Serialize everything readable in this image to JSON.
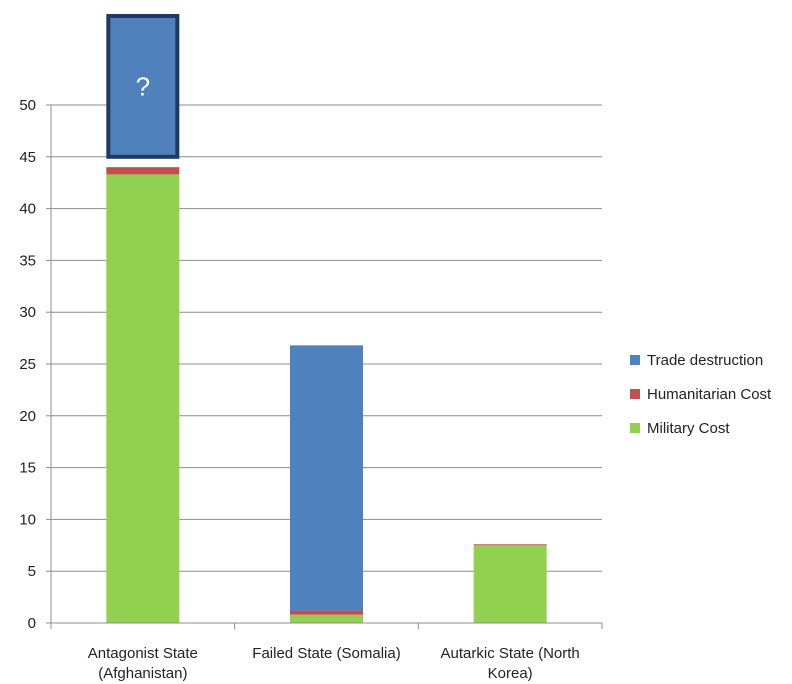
{
  "chart_data": {
    "type": "bar",
    "stacked": true,
    "categories": [
      [
        "Antagonist State",
        "(Afghanistan)"
      ],
      [
        "Failed State (Somalia)"
      ],
      [
        "Autarkic State (North",
        "Korea)"
      ]
    ],
    "series": [
      {
        "name": "Military Cost",
        "color": "#92d050",
        "values": [
          43.3,
          0.8,
          7.5
        ]
      },
      {
        "name": "Humanitarian Cost",
        "color": "#c0504d",
        "values": [
          0.7,
          0.4,
          0.1
        ]
      },
      {
        "name": "Trade destruction",
        "color": "#4f81bd",
        "values": [
          0,
          25.6,
          0
        ]
      }
    ],
    "legend_order": [
      "Trade destruction",
      "Humanitarian Cost",
      "Military Cost"
    ],
    "legend_position": "right",
    "ylim": [
      0,
      50
    ],
    "yticks": [
      0,
      5,
      10,
      15,
      20,
      25,
      30,
      35,
      40,
      45,
      50
    ],
    "grid": true,
    "annotation": {
      "category_index": 0,
      "text": "?",
      "from": 45,
      "fill": "#4f81bd",
      "border": "#1f3864"
    }
  }
}
